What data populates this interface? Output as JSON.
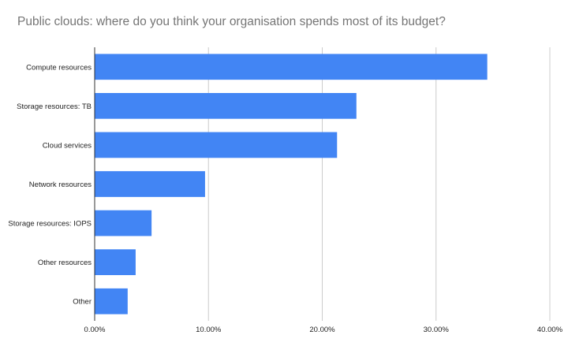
{
  "chart_data": {
    "type": "bar",
    "orientation": "horizontal",
    "title": "Public clouds: where do you think your organisation spends most of its budget?",
    "categories": [
      "Compute resources",
      "Storage resources: TB",
      "Cloud services",
      "Network resources",
      "Storage resources: IOPS",
      "Other resources",
      "Other"
    ],
    "values": [
      34.5,
      23.0,
      21.3,
      9.7,
      5.0,
      3.6,
      2.9
    ],
    "xlim": [
      0,
      40
    ],
    "xticks": [
      "0.00%",
      "10.00%",
      "20.00%",
      "30.00%",
      "40.00%"
    ],
    "xlabel": "",
    "ylabel": "",
    "grid": true,
    "bar_color": "#4285f4"
  }
}
